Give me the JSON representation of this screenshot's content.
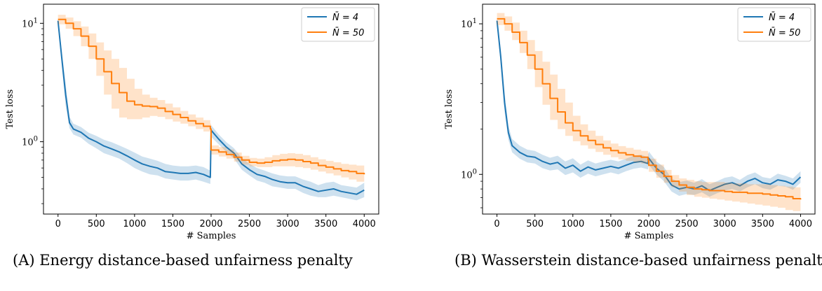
{
  "captions": [
    "(A) Energy distance-based unfairness penalty",
    "(B) Wasserstein distance-based unfairness penalt"
  ],
  "colors": {
    "series_blue": "#1f77b4",
    "series_orange": "#ff7f0e"
  },
  "chart_data": [
    {
      "type": "line",
      "xlabel": "# Samples",
      "ylabel": "Test loss",
      "yscale": "log",
      "xlim": [
        -190,
        4190
      ],
      "ylim": [
        0.245,
        14.5
      ],
      "xticks": [
        0,
        500,
        1000,
        1500,
        2000,
        2500,
        3000,
        3500,
        4000
      ],
      "yticks": [
        1,
        10
      ],
      "ytick_labels": [
        "10^0",
        "10^1"
      ],
      "legend_position": "top-right",
      "grid": false,
      "series": [
        {
          "name": "N̄ = 4",
          "color": "#1f77b4",
          "step": false,
          "x": [
            0,
            50,
            100,
            150,
            200,
            300,
            400,
            500,
            600,
            700,
            800,
            900,
            1000,
            1100,
            1200,
            1300,
            1400,
            1500,
            1600,
            1700,
            1800,
            1900,
            1990,
            2000,
            2100,
            2200,
            2300,
            2400,
            2500,
            2600,
            2700,
            2800,
            2900,
            3000,
            3100,
            3200,
            3300,
            3400,
            3500,
            3600,
            3700,
            3800,
            3900,
            4000
          ],
          "y": [
            10.5,
            5.0,
            2.5,
            1.45,
            1.28,
            1.2,
            1.07,
            1.0,
            0.92,
            0.87,
            0.82,
            0.76,
            0.7,
            0.65,
            0.62,
            0.6,
            0.56,
            0.55,
            0.54,
            0.54,
            0.55,
            0.53,
            0.5,
            1.25,
            1.05,
            0.9,
            0.8,
            0.65,
            0.58,
            0.53,
            0.51,
            0.48,
            0.46,
            0.45,
            0.45,
            0.42,
            0.4,
            0.38,
            0.39,
            0.4,
            0.38,
            0.37,
            0.36,
            0.39
          ],
          "lower": [
            10.2,
            4.3,
            2.0,
            1.3,
            1.15,
            1.08,
            0.96,
            0.88,
            0.8,
            0.76,
            0.72,
            0.66,
            0.6,
            0.56,
            0.53,
            0.52,
            0.49,
            0.48,
            0.47,
            0.47,
            0.48,
            0.46,
            0.44,
            1.1,
            0.95,
            0.82,
            0.72,
            0.58,
            0.52,
            0.47,
            0.45,
            0.42,
            0.41,
            0.4,
            0.4,
            0.37,
            0.35,
            0.34,
            0.34,
            0.35,
            0.34,
            0.33,
            0.32,
            0.34
          ],
          "upper": [
            10.8,
            5.8,
            3.1,
            1.62,
            1.42,
            1.33,
            1.19,
            1.12,
            1.04,
            0.99,
            0.93,
            0.87,
            0.81,
            0.75,
            0.72,
            0.69,
            0.65,
            0.63,
            0.62,
            0.62,
            0.63,
            0.61,
            0.57,
            1.38,
            1.15,
            0.99,
            0.88,
            0.73,
            0.65,
            0.6,
            0.57,
            0.54,
            0.52,
            0.51,
            0.51,
            0.48,
            0.46,
            0.43,
            0.45,
            0.46,
            0.43,
            0.42,
            0.41,
            0.45
          ]
        },
        {
          "name": "N̄ = 50",
          "color": "#ff7f0e",
          "step": true,
          "x": [
            0,
            100,
            200,
            300,
            400,
            500,
            600,
            700,
            800,
            900,
            1000,
            1100,
            1200,
            1300,
            1400,
            1500,
            1600,
            1700,
            1800,
            1900,
            1990,
            2000,
            2100,
            2200,
            2300,
            2400,
            2500,
            2600,
            2700,
            2800,
            2900,
            3000,
            3100,
            3200,
            3300,
            3400,
            3500,
            3600,
            3700,
            3800,
            3900,
            4000
          ],
          "y": [
            10.8,
            10.0,
            9.0,
            7.8,
            6.4,
            5.0,
            3.9,
            3.1,
            2.6,
            2.2,
            2.05,
            2.0,
            1.98,
            1.92,
            1.8,
            1.7,
            1.6,
            1.5,
            1.42,
            1.35,
            1.28,
            0.85,
            0.82,
            0.78,
            0.74,
            0.7,
            0.67,
            0.66,
            0.67,
            0.69,
            0.7,
            0.71,
            0.7,
            0.68,
            0.66,
            0.63,
            0.61,
            0.59,
            0.57,
            0.56,
            0.54,
            0.53
          ],
          "lower": [
            9.8,
            9.0,
            7.8,
            6.4,
            5.0,
            3.6,
            2.5,
            1.9,
            1.6,
            1.55,
            1.55,
            1.6,
            1.65,
            1.62,
            1.55,
            1.48,
            1.42,
            1.35,
            1.28,
            1.22,
            1.18,
            0.78,
            0.75,
            0.72,
            0.68,
            0.64,
            0.62,
            0.61,
            0.61,
            0.62,
            0.62,
            0.62,
            0.61,
            0.6,
            0.58,
            0.56,
            0.54,
            0.52,
            0.5,
            0.48,
            0.46,
            0.45
          ],
          "upper": [
            11.8,
            11.2,
            10.4,
            9.4,
            8.2,
            6.9,
            5.9,
            5.0,
            4.2,
            3.4,
            2.8,
            2.5,
            2.35,
            2.25,
            2.1,
            1.95,
            1.82,
            1.7,
            1.6,
            1.52,
            1.42,
            0.93,
            0.9,
            0.86,
            0.81,
            0.76,
            0.73,
            0.72,
            0.74,
            0.77,
            0.79,
            0.8,
            0.79,
            0.77,
            0.74,
            0.71,
            0.69,
            0.67,
            0.65,
            0.64,
            0.63,
            0.62
          ]
        }
      ]
    },
    {
      "type": "line",
      "xlabel": "# Samples",
      "ylabel": "Test loss",
      "yscale": "log",
      "xlim": [
        -190,
        4190
      ],
      "ylim": [
        0.545,
        13.5
      ],
      "xticks": [
        0,
        500,
        1000,
        1500,
        2000,
        2500,
        3000,
        3500,
        4000
      ],
      "yticks": [
        1,
        10
      ],
      "ytick_labels": [
        "10^0",
        "10^1"
      ],
      "legend_position": "top-right",
      "grid": false,
      "series": [
        {
          "name": "N̄ = 4",
          "color": "#1f77b4",
          "step": false,
          "x": [
            0,
            50,
            100,
            150,
            200,
            300,
            400,
            500,
            600,
            700,
            800,
            900,
            1000,
            1100,
            1200,
            1300,
            1400,
            1500,
            1600,
            1700,
            1800,
            1900,
            1990,
            2000,
            2100,
            2200,
            2300,
            2400,
            2500,
            2600,
            2700,
            2800,
            2900,
            3000,
            3100,
            3200,
            3300,
            3400,
            3500,
            3600,
            3700,
            3800,
            3900,
            4000
          ],
          "y": [
            10.5,
            6.0,
            3.0,
            1.9,
            1.55,
            1.4,
            1.32,
            1.3,
            1.22,
            1.17,
            1.2,
            1.1,
            1.15,
            1.05,
            1.12,
            1.07,
            1.1,
            1.13,
            1.1,
            1.15,
            1.2,
            1.22,
            1.18,
            1.28,
            1.1,
            1.0,
            0.85,
            0.8,
            0.82,
            0.8,
            0.84,
            0.78,
            0.82,
            0.86,
            0.88,
            0.84,
            0.9,
            0.94,
            0.88,
            0.86,
            0.92,
            0.9,
            0.86,
            0.96
          ],
          "lower": [
            10.2,
            5.3,
            2.6,
            1.7,
            1.4,
            1.27,
            1.2,
            1.18,
            1.1,
            1.06,
            1.08,
            0.99,
            1.03,
            0.95,
            1.01,
            0.97,
            1.0,
            1.03,
            1.0,
            1.05,
            1.09,
            1.11,
            1.08,
            1.16,
            1.0,
            0.9,
            0.77,
            0.72,
            0.74,
            0.73,
            0.76,
            0.71,
            0.75,
            0.78,
            0.8,
            0.77,
            0.82,
            0.86,
            0.81,
            0.79,
            0.84,
            0.83,
            0.79,
            0.88
          ],
          "upper": [
            10.8,
            6.8,
            3.5,
            2.1,
            1.72,
            1.55,
            1.46,
            1.43,
            1.35,
            1.29,
            1.33,
            1.22,
            1.28,
            1.16,
            1.24,
            1.18,
            1.22,
            1.25,
            1.22,
            1.27,
            1.33,
            1.35,
            1.3,
            1.42,
            1.22,
            1.12,
            0.94,
            0.89,
            0.91,
            0.88,
            0.93,
            0.86,
            0.9,
            0.95,
            0.97,
            0.92,
            0.99,
            1.03,
            0.96,
            0.94,
            1.01,
            0.98,
            0.94,
            1.05
          ]
        },
        {
          "name": "N̄ = 50",
          "color": "#ff7f0e",
          "step": true,
          "x": [
            0,
            100,
            200,
            300,
            400,
            500,
            600,
            700,
            800,
            900,
            1000,
            1100,
            1200,
            1300,
            1400,
            1500,
            1600,
            1700,
            1800,
            1900,
            1990,
            2000,
            2100,
            2200,
            2300,
            2400,
            2500,
            2600,
            2700,
            2800,
            2900,
            3000,
            3100,
            3200,
            3300,
            3400,
            3500,
            3600,
            3700,
            3800,
            3900,
            4000
          ],
          "y": [
            10.8,
            10.0,
            8.8,
            7.5,
            6.2,
            5.0,
            4.0,
            3.2,
            2.6,
            2.2,
            1.95,
            1.8,
            1.68,
            1.58,
            1.5,
            1.44,
            1.39,
            1.35,
            1.32,
            1.3,
            1.25,
            1.15,
            1.05,
            0.97,
            0.9,
            0.85,
            0.82,
            0.8,
            0.79,
            0.78,
            0.78,
            0.77,
            0.76,
            0.76,
            0.75,
            0.75,
            0.74,
            0.73,
            0.72,
            0.71,
            0.69,
            0.68
          ],
          "lower": [
            9.8,
            9.0,
            7.8,
            6.4,
            5.0,
            3.8,
            2.9,
            2.3,
            2.0,
            1.8,
            1.66,
            1.56,
            1.48,
            1.41,
            1.35,
            1.3,
            1.26,
            1.23,
            1.2,
            1.18,
            1.13,
            1.04,
            0.95,
            0.88,
            0.82,
            0.77,
            0.73,
            0.71,
            0.7,
            0.69,
            0.68,
            0.67,
            0.66,
            0.65,
            0.64,
            0.63,
            0.62,
            0.61,
            0.6,
            0.58,
            0.57,
            0.56
          ],
          "upper": [
            11.8,
            11.2,
            10.2,
            9.0,
            7.8,
            6.6,
            5.6,
            4.6,
            3.7,
            3.0,
            2.45,
            2.15,
            1.95,
            1.8,
            1.68,
            1.6,
            1.54,
            1.5,
            1.46,
            1.43,
            1.38,
            1.27,
            1.16,
            1.07,
            0.99,
            0.94,
            0.92,
            0.9,
            0.89,
            0.89,
            0.89,
            0.88,
            0.87,
            0.87,
            0.86,
            0.86,
            0.86,
            0.85,
            0.84,
            0.83,
            0.82,
            0.81
          ]
        }
      ]
    }
  ]
}
